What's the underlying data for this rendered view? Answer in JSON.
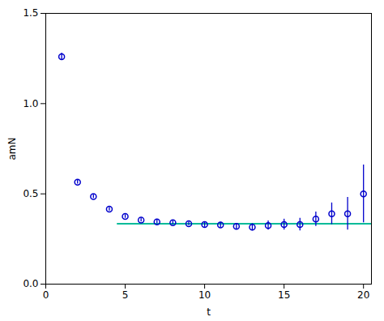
{
  "chart_data": {
    "type": "scatter",
    "x": [
      1,
      2,
      3,
      4,
      5,
      6,
      7,
      8,
      9,
      10,
      11,
      12,
      13,
      14,
      15,
      16,
      17,
      18,
      19,
      20
    ],
    "values": [
      1.26,
      0.565,
      0.485,
      0.415,
      0.375,
      0.355,
      0.345,
      0.34,
      0.335,
      0.33,
      0.328,
      0.32,
      0.315,
      0.325,
      0.33,
      0.33,
      0.36,
      0.39,
      0.39,
      0.5
    ],
    "yerr": [
      0.02,
      0.01,
      0.01,
      0.01,
      0.01,
      0.01,
      0.01,
      0.01,
      0.01,
      0.015,
      0.015,
      0.015,
      0.02,
      0.025,
      0.03,
      0.035,
      0.04,
      0.06,
      0.09,
      0.16
    ],
    "color": "#0000cc",
    "marker": "circle",
    "hline": {
      "y": 0.335,
      "xmin": 4.5,
      "xmax": 20.5,
      "color": "#00bb99"
    },
    "xlabel": "t",
    "ylabel": "amN",
    "xlim": [
      0,
      20.5
    ],
    "ylim": [
      0,
      1.5
    ],
    "xticks": [
      0,
      5,
      10,
      15,
      20
    ],
    "yticks": [
      {
        "value": 0,
        "label": "0.0"
      },
      0.5,
      {
        "value": 1.0,
        "label": "1.0"
      },
      1.5
    ]
  }
}
